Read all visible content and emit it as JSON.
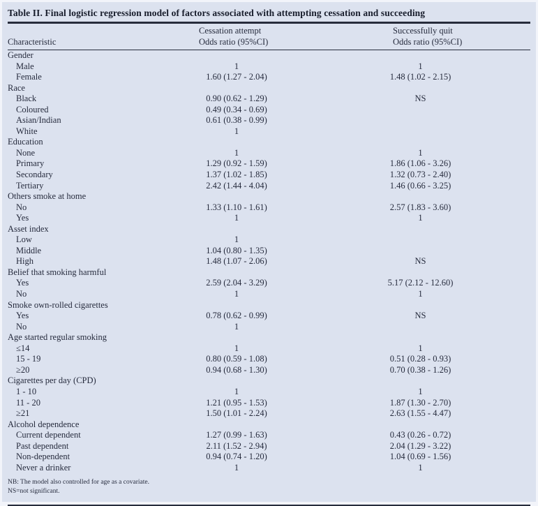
{
  "title": "Table II. Final logistic regression model of factors associated with attempting cessation and succeeding",
  "columns": {
    "characteristic": "Characteristic",
    "attempt_line1": "Cessation attempt",
    "attempt_line2": "Odds ratio (95%CI)",
    "quit_line1": "Successfully quit",
    "quit_line2": "Odds ratio (95%CI)"
  },
  "sections": [
    {
      "header": "Gender",
      "rows": [
        {
          "label": "Male",
          "attempt": "1",
          "quit": "1"
        },
        {
          "label": "Female",
          "attempt": "1.60 (1.27 - 2.04)",
          "quit": "1.48 (1.02 - 2.15)"
        }
      ]
    },
    {
      "header": "Race",
      "rows": [
        {
          "label": "Black",
          "attempt": "0.90 (0.62 - 1.29)",
          "quit": "NS"
        },
        {
          "label": "Coloured",
          "attempt": "0.49 (0.34 - 0.69)",
          "quit": ""
        },
        {
          "label": "Asian/Indian",
          "attempt": "0.61 (0.38 - 0.99)",
          "quit": ""
        },
        {
          "label": "White",
          "attempt": "1",
          "quit": ""
        }
      ]
    },
    {
      "header": "Education",
      "rows": [
        {
          "label": "None",
          "attempt": "1",
          "quit": "1"
        },
        {
          "label": "Primary",
          "attempt": "1.29 (0.92 - 1.59)",
          "quit": "1.86 (1.06 - 3.26)"
        },
        {
          "label": "Secondary",
          "attempt": "1.37 (1.02 - 1.85)",
          "quit": "1.32 (0.73 - 2.40)"
        },
        {
          "label": "Tertiary",
          "attempt": "2.42 (1.44 - 4.04)",
          "quit": "1.46 (0.66 - 3.25)"
        }
      ]
    },
    {
      "header": "Others smoke at home",
      "rows": [
        {
          "label": "No",
          "attempt": "1.33 (1.10 - 1.61)",
          "quit": "2.57 (1.83 - 3.60)"
        },
        {
          "label": "Yes",
          "attempt": "1",
          "quit": "1"
        }
      ]
    },
    {
      "header": "Asset index",
      "rows": [
        {
          "label": "Low",
          "attempt": "1",
          "quit": ""
        },
        {
          "label": "Middle",
          "attempt": "1.04 (0.80 - 1.35)",
          "quit": ""
        },
        {
          "label": "High",
          "attempt": "1.48 (1.07 - 2.06)",
          "quit": "NS"
        }
      ]
    },
    {
      "header": "Belief that smoking harmful",
      "rows": [
        {
          "label": "Yes",
          "attempt": "2.59 (2.04 - 3.29)",
          "quit": "5.17 (2.12 - 12.60)"
        },
        {
          "label": "No",
          "attempt": "1",
          "quit": "1"
        }
      ]
    },
    {
      "header": "Smoke own-rolled cigarettes",
      "rows": [
        {
          "label": "Yes",
          "attempt": "0.78 (0.62 - 0.99)",
          "quit": "NS"
        },
        {
          "label": "No",
          "attempt": "1",
          "quit": ""
        }
      ]
    },
    {
      "header": "Age started regular smoking",
      "rows": [
        {
          "label": "≤14",
          "attempt": "1",
          "quit": "1"
        },
        {
          "label": "15 - 19",
          "attempt": "0.80 (0.59 - 1.08)",
          "quit": "0.51 (0.28 - 0.93)"
        },
        {
          "label": "≥20",
          "attempt": "0.94 (0.68 - 1.30)",
          "quit": "0.70 (0.38 - 1.26)"
        }
      ]
    },
    {
      "header": "Cigarettes per day (CPD)",
      "rows": [
        {
          "label": "1 - 10",
          "attempt": "1",
          "quit": "1"
        },
        {
          "label": "11 - 20",
          "attempt": "1.21 (0.95 - 1.53)",
          "quit": "1.87 (1.30 - 2.70)"
        },
        {
          "label": "≥21",
          "attempt": "1.50 (1.01 - 2.24)",
          "quit": "2.63 (1.55 - 4.47)"
        }
      ]
    },
    {
      "header": "Alcohol dependence",
      "rows": [
        {
          "label": "Current dependent",
          "attempt": "1.27 (0.99 - 1.63)",
          "quit": "0.43 (0.26 - 0.72)"
        },
        {
          "label": "Past dependent",
          "attempt": "2.11 (1.52 - 2.94)",
          "quit": "2.04 (1.29 - 3.22)"
        },
        {
          "label": "Non-dependent",
          "attempt": "0.94 (0.74 - 1.20)",
          "quit": "1.04 (0.69 - 1.56)"
        },
        {
          "label": "Never a drinker",
          "attempt": "1",
          "quit": "1"
        }
      ]
    }
  ],
  "footnotes": [
    "NB: The model also controlled for age as a covariate.",
    "NS=not significant."
  ]
}
